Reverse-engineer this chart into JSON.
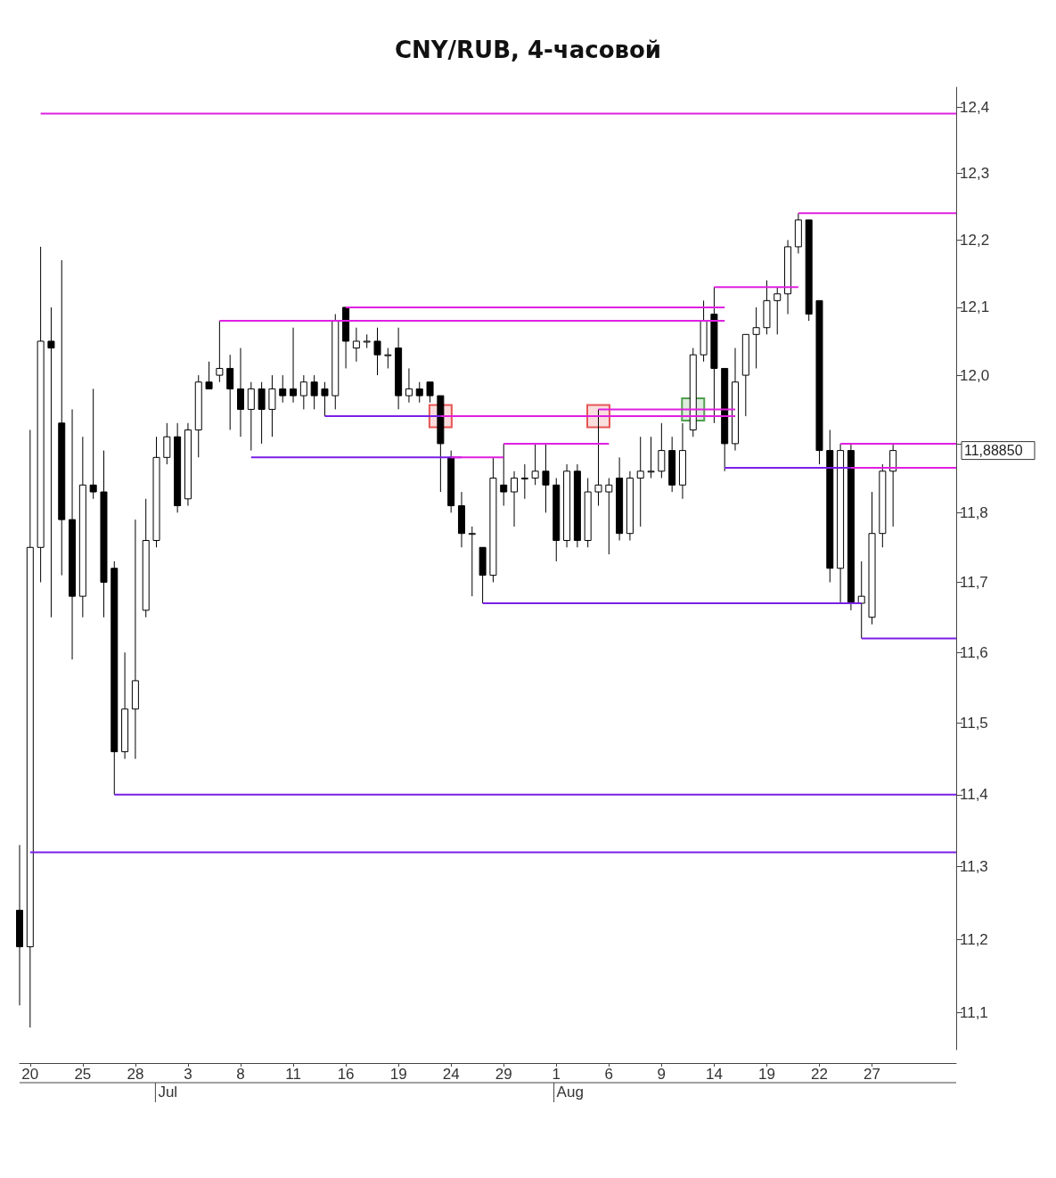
{
  "chart_data": {
    "type": "candlestick",
    "title": "CNY/RUB, 4-часовой",
    "log": "y",
    "ylim": [
      11.05,
      12.43
    ],
    "yticks": [
      {
        "value": 11.1,
        "label": "11,1"
      },
      {
        "value": 11.2,
        "label": "11,2"
      },
      {
        "value": 11.3,
        "label": "11,3"
      },
      {
        "value": 11.4,
        "label": "11,4"
      },
      {
        "value": 11.5,
        "label": "11,5"
      },
      {
        "value": 11.6,
        "label": "11,6"
      },
      {
        "value": 11.7,
        "label": "11,7"
      },
      {
        "value": 11.8,
        "label": "11,8"
      },
      {
        "value": 11.9,
        "label": null
      },
      {
        "value": 12.0,
        "label": "12,0"
      },
      {
        "value": 12.1,
        "label": "12,1"
      },
      {
        "value": 12.2,
        "label": "12,2"
      },
      {
        "value": 12.3,
        "label": "12,3"
      },
      {
        "value": 12.4,
        "label": "12,4"
      }
    ],
    "categories": [
      null,
      "20",
      null,
      null,
      null,
      null,
      "25",
      null,
      null,
      null,
      null,
      "28",
      null,
      null,
      null,
      null,
      "3",
      null,
      null,
      null,
      null,
      "8",
      null,
      null,
      null,
      null,
      "11",
      null,
      null,
      null,
      null,
      "16",
      null,
      null,
      null,
      null,
      "19",
      null,
      null,
      null,
      null,
      "24",
      null,
      null,
      null,
      null,
      "29",
      null,
      null,
      null,
      null,
      "1",
      null,
      null,
      null,
      null,
      "6",
      null,
      null,
      null,
      null,
      "9",
      null,
      null,
      null,
      null,
      "14",
      null,
      null,
      null,
      null,
      "19",
      null,
      null,
      null,
      null,
      "22",
      null,
      null,
      null,
      null,
      "27",
      null,
      null,
      null,
      null,
      null,
      null,
      null,
      null
    ],
    "ohlc": [
      [
        11.24,
        11.33,
        11.11,
        11.19
      ],
      [
        11.19,
        11.92,
        11.08,
        11.75
      ],
      [
        11.75,
        12.19,
        11.7,
        12.05
      ],
      [
        12.05,
        12.1,
        11.65,
        12.04
      ],
      [
        11.93,
        12.17,
        11.71,
        11.79
      ],
      [
        11.79,
        11.95,
        11.59,
        11.68
      ],
      [
        11.68,
        11.91,
        11.65,
        11.84
      ],
      [
        11.84,
        11.98,
        11.82,
        11.83
      ],
      [
        11.83,
        11.89,
        11.65,
        11.7
      ],
      [
        11.72,
        11.73,
        11.4,
        11.46
      ],
      [
        11.46,
        11.6,
        11.45,
        11.52
      ],
      [
        11.52,
        11.79,
        11.45,
        11.56
      ],
      [
        11.66,
        11.82,
        11.65,
        11.76
      ],
      [
        11.76,
        11.91,
        11.75,
        11.88
      ],
      [
        11.88,
        11.93,
        11.87,
        11.91
      ],
      [
        11.91,
        11.93,
        11.8,
        11.81
      ],
      [
        11.82,
        11.93,
        11.81,
        11.92
      ],
      [
        11.92,
        12.0,
        11.88,
        11.99
      ],
      [
        11.99,
        12.02,
        11.98,
        11.98
      ],
      [
        12.0,
        12.08,
        11.99,
        12.01
      ],
      [
        12.01,
        12.03,
        11.92,
        11.98
      ],
      [
        11.98,
        12.04,
        11.91,
        11.95
      ],
      [
        11.95,
        11.99,
        11.89,
        11.98
      ],
      [
        11.98,
        11.99,
        11.9,
        11.95
      ],
      [
        11.95,
        12.0,
        11.91,
        11.98
      ],
      [
        11.98,
        12.0,
        11.96,
        11.97
      ],
      [
        11.98,
        12.07,
        11.96,
        11.97
      ],
      [
        11.97,
        12.0,
        11.95,
        11.99
      ],
      [
        11.99,
        12.0,
        11.95,
        11.97
      ],
      [
        11.98,
        11.99,
        11.94,
        11.97
      ],
      [
        11.97,
        12.09,
        11.95,
        12.08
      ],
      [
        12.1,
        12.1,
        12.01,
        12.05
      ],
      [
        12.04,
        12.07,
        12.02,
        12.05
      ],
      [
        12.05,
        12.06,
        12.04,
        12.05
      ],
      [
        12.05,
        12.07,
        12.0,
        12.03
      ],
      [
        12.03,
        12.04,
        12.01,
        12.03
      ],
      [
        12.04,
        12.07,
        11.95,
        11.97
      ],
      [
        11.97,
        12.01,
        11.96,
        11.98
      ],
      [
        11.98,
        11.99,
        11.96,
        11.97
      ],
      [
        11.99,
        11.99,
        11.96,
        11.97
      ],
      [
        11.97,
        11.97,
        11.83,
        11.9
      ],
      [
        11.88,
        11.89,
        11.8,
        11.81
      ],
      [
        11.81,
        11.83,
        11.75,
        11.77
      ],
      [
        11.77,
        11.78,
        11.68,
        11.77
      ],
      [
        11.75,
        11.75,
        11.67,
        11.71
      ],
      [
        11.71,
        11.88,
        11.7,
        11.85
      ],
      [
        11.84,
        11.9,
        11.81,
        11.83
      ],
      [
        11.83,
        11.86,
        11.78,
        11.85
      ],
      [
        11.85,
        11.87,
        11.82,
        11.85
      ],
      [
        11.85,
        11.9,
        11.84,
        11.86
      ],
      [
        11.86,
        11.9,
        11.8,
        11.84
      ],
      [
        11.84,
        11.85,
        11.73,
        11.76
      ],
      [
        11.76,
        11.87,
        11.75,
        11.86
      ],
      [
        11.86,
        11.87,
        11.75,
        11.76
      ],
      [
        11.76,
        11.85,
        11.75,
        11.83
      ],
      [
        11.83,
        11.95,
        11.81,
        11.84
      ],
      [
        11.83,
        11.85,
        11.74,
        11.84
      ],
      [
        11.85,
        11.88,
        11.76,
        11.77
      ],
      [
        11.77,
        11.86,
        11.76,
        11.85
      ],
      [
        11.85,
        11.91,
        11.78,
        11.86
      ],
      [
        11.86,
        11.91,
        11.85,
        11.86
      ],
      [
        11.86,
        11.93,
        11.85,
        11.89
      ],
      [
        11.89,
        11.91,
        11.83,
        11.84
      ],
      [
        11.84,
        11.93,
        11.82,
        11.89
      ],
      [
        11.92,
        12.04,
        11.91,
        12.03
      ],
      [
        12.03,
        12.11,
        12.02,
        12.08
      ],
      [
        12.09,
        12.13,
        11.93,
        12.01
      ],
      [
        12.01,
        12.01,
        11.86,
        11.9
      ],
      [
        11.9,
        12.04,
        11.89,
        11.99
      ],
      [
        12.0,
        12.06,
        11.94,
        12.06
      ],
      [
        12.06,
        12.1,
        12.01,
        12.07
      ],
      [
        12.07,
        12.14,
        12.06,
        12.11
      ],
      [
        12.11,
        12.13,
        12.06,
        12.12
      ],
      [
        12.12,
        12.2,
        12.09,
        12.19
      ],
      [
        12.19,
        12.24,
        12.18,
        12.23
      ],
      [
        12.23,
        12.23,
        12.08,
        12.09
      ],
      [
        12.11,
        12.11,
        11.87,
        11.89
      ],
      [
        11.89,
        11.92,
        11.7,
        11.72
      ],
      [
        11.72,
        11.9,
        11.67,
        11.89
      ],
      [
        11.89,
        11.9,
        11.66,
        11.67
      ],
      [
        11.67,
        11.73,
        11.62,
        11.68
      ],
      [
        11.65,
        11.83,
        11.64,
        11.77
      ],
      [
        11.77,
        11.87,
        11.75,
        11.86
      ],
      [
        11.86,
        11.9,
        11.78,
        11.89
      ],
      null,
      null,
      null,
      null,
      null,
      null
    ],
    "series": [
      {
        "type": "line",
        "color": "#7a1fe6",
        "values": [
          null,
          11.32,
          11.32,
          11.32,
          11.32,
          11.32,
          11.32,
          11.32,
          11.32,
          11.32,
          11.32,
          11.32,
          11.32,
          11.32,
          11.32,
          11.32,
          11.32,
          11.32,
          11.32,
          11.32,
          11.32,
          11.32,
          11.32,
          11.32,
          11.32,
          11.32,
          11.32,
          11.32,
          11.32,
          11.32,
          11.32,
          11.32,
          11.32,
          11.32,
          11.32,
          11.32,
          11.32,
          11.32,
          11.32,
          11.32,
          11.32,
          11.32,
          11.32,
          11.32,
          11.32,
          11.32,
          11.32,
          11.32,
          11.32,
          11.32,
          11.32,
          11.32,
          11.32,
          11.32,
          11.32,
          11.32,
          11.32,
          11.32,
          11.32,
          11.32,
          11.32,
          11.32,
          11.32,
          11.32,
          11.32,
          11.32,
          11.32,
          11.32,
          11.32,
          11.32,
          11.32,
          11.32,
          11.32,
          11.32,
          11.32,
          11.32,
          11.32,
          11.32,
          11.32,
          11.32,
          11.32,
          11.32,
          11.32,
          11.32,
          11.32,
          11.32,
          11.32,
          11.32,
          11.32,
          11.32
        ]
      },
      {
        "type": "line",
        "color": "#7a1fe6",
        "values": [
          null,
          null,
          null,
          null,
          null,
          null,
          null,
          null,
          null,
          11.4,
          11.4,
          11.4,
          11.4,
          11.4,
          11.4,
          11.4,
          11.4,
          11.4,
          11.4,
          11.4,
          11.4,
          11.4,
          11.4,
          11.4,
          11.4,
          11.4,
          11.4,
          11.4,
          11.4,
          11.4,
          11.4,
          11.4,
          11.4,
          11.4,
          11.4,
          11.4,
          11.4,
          11.4,
          11.4,
          11.4,
          11.4,
          11.4,
          11.4,
          11.4,
          11.4,
          11.4,
          11.4,
          11.4,
          11.4,
          11.4,
          11.4,
          11.4,
          11.4,
          11.4,
          11.4,
          11.4,
          11.4,
          11.4,
          11.4,
          11.4,
          11.4,
          11.4,
          11.4,
          11.4,
          11.4,
          11.4,
          11.4,
          11.4,
          11.4,
          11.4,
          11.4,
          11.4,
          11.4,
          11.4,
          11.4,
          11.4,
          11.4,
          11.4,
          11.4,
          11.4,
          11.4,
          11.4,
          11.4,
          11.4,
          11.4,
          11.4,
          11.4,
          11.4,
          11.4,
          11.4
        ]
      },
      {
        "type": "line",
        "color": "#7a1fe6",
        "values": [
          null,
          null,
          null,
          null,
          null,
          null,
          null,
          null,
          null,
          null,
          null,
          null,
          null,
          null,
          null,
          null,
          null,
          null,
          null,
          null,
          null,
          null,
          null,
          null,
          null,
          null,
          null,
          null,
          null,
          null,
          null,
          null,
          null,
          null,
          null,
          null,
          null,
          null,
          null,
          null,
          null,
          null,
          null,
          null,
          11.67,
          11.67,
          11.67,
          11.67,
          11.67,
          11.67,
          11.67,
          11.67,
          11.67,
          11.67,
          11.67,
          11.67,
          11.67,
          11.67,
          11.67,
          11.67,
          11.67,
          11.67,
          11.67,
          11.67,
          11.67,
          11.67,
          11.67,
          11.67,
          11.67,
          11.67,
          11.67,
          11.67,
          11.67,
          11.67,
          11.67,
          11.67,
          11.67,
          11.67,
          11.67,
          11.67,
          11.67,
          null,
          null,
          null,
          null,
          null,
          null,
          null,
          null,
          null
        ]
      },
      {
        "type": "line",
        "color": "#7a1fe6",
        "values": [
          null,
          null,
          null,
          null,
          null,
          null,
          null,
          null,
          null,
          null,
          null,
          null,
          null,
          null,
          null,
          null,
          null,
          null,
          null,
          null,
          null,
          null,
          null,
          null,
          null,
          null,
          null,
          null,
          null,
          null,
          null,
          null,
          null,
          null,
          null,
          null,
          null,
          null,
          null,
          null,
          null,
          null,
          null,
          null,
          null,
          null,
          null,
          null,
          null,
          null,
          null,
          null,
          null,
          null,
          null,
          null,
          null,
          null,
          null,
          null,
          null,
          null,
          null,
          null,
          null,
          null,
          null,
          null,
          null,
          null,
          null,
          null,
          null,
          null,
          null,
          null,
          null,
          null,
          null,
          null,
          11.62,
          11.62,
          11.62,
          11.62,
          11.62,
          11.62,
          11.62,
          11.62,
          11.62,
          11.62
        ]
      },
      {
        "type": "line",
        "color": "#7a1fe6",
        "values": [
          null,
          null,
          null,
          null,
          null,
          null,
          null,
          null,
          null,
          null,
          null,
          null,
          null,
          null,
          null,
          null,
          null,
          null,
          null,
          null,
          null,
          null,
          11.88,
          11.88,
          11.88,
          11.88,
          11.88,
          11.88,
          11.88,
          11.88,
          11.88,
          11.88,
          11.88,
          11.88,
          11.88,
          11.88,
          11.88,
          11.88,
          11.88,
          11.88,
          11.88,
          11.88,
          11.88,
          null,
          null,
          null,
          null,
          null,
          null,
          null,
          null,
          null,
          null,
          null,
          null,
          null,
          null,
          null,
          null,
          null,
          null,
          null,
          null,
          null,
          null,
          null,
          null,
          null,
          null,
          null,
          null,
          null,
          null,
          null,
          null,
          null,
          null,
          null,
          null,
          null,
          null,
          null,
          null,
          null,
          null,
          null,
          null,
          null,
          null,
          null
        ]
      },
      {
        "type": "line",
        "color": "#7a1fe6",
        "values": [
          null,
          null,
          null,
          null,
          null,
          null,
          null,
          null,
          null,
          null,
          null,
          null,
          null,
          null,
          null,
          null,
          null,
          null,
          null,
          null,
          null,
          null,
          null,
          null,
          null,
          null,
          null,
          null,
          null,
          11.94,
          11.94,
          11.94,
          11.94,
          11.94,
          11.94,
          11.94,
          11.94,
          11.94,
          11.94,
          11.94,
          11.94,
          null,
          null,
          null,
          null,
          null,
          null,
          null,
          null,
          null,
          null,
          null,
          null,
          null,
          null,
          null,
          null,
          null,
          null,
          null,
          null,
          null,
          null,
          null,
          null,
          null,
          null,
          null,
          null,
          null,
          null,
          null,
          null,
          null,
          null,
          null,
          null,
          null,
          null,
          null,
          null,
          null,
          null,
          null,
          null,
          null,
          null,
          null,
          null,
          null
        ]
      },
      {
        "type": "line",
        "color": "#7a1fe6",
        "values": [
          null,
          null,
          null,
          null,
          null,
          null,
          null,
          null,
          null,
          null,
          null,
          null,
          null,
          null,
          null,
          null,
          null,
          null,
          null,
          null,
          null,
          null,
          null,
          null,
          null,
          null,
          null,
          null,
          null,
          null,
          null,
          null,
          null,
          null,
          null,
          null,
          null,
          null,
          null,
          null,
          null,
          null,
          null,
          null,
          null,
          null,
          null,
          null,
          null,
          null,
          null,
          null,
          null,
          null,
          null,
          null,
          null,
          null,
          null,
          null,
          null,
          null,
          null,
          null,
          null,
          null,
          null,
          11.865,
          11.865,
          11.865,
          11.865,
          11.865,
          11.865,
          11.865,
          11.865,
          11.865,
          11.865,
          11.865,
          11.865,
          11.865,
          null,
          null,
          null,
          null,
          null,
          null,
          null,
          null,
          null,
          null
        ]
      },
      {
        "type": "line",
        "color": "#e020e0",
        "values": [
          null,
          null,
          12.39,
          12.39,
          12.39,
          12.39,
          12.39,
          12.39,
          12.39,
          12.39,
          12.39,
          12.39,
          12.39,
          12.39,
          12.39,
          12.39,
          12.39,
          12.39,
          12.39,
          12.39,
          12.39,
          12.39,
          12.39,
          12.39,
          12.39,
          12.39,
          12.39,
          12.39,
          12.39,
          12.39,
          12.39,
          12.39,
          12.39,
          12.39,
          12.39,
          12.39,
          12.39,
          12.39,
          12.39,
          12.39,
          12.39,
          12.39,
          12.39,
          12.39,
          12.39,
          12.39,
          12.39,
          12.39,
          12.39,
          12.39,
          12.39,
          12.39,
          12.39,
          12.39,
          12.39,
          12.39,
          12.39,
          12.39,
          12.39,
          12.39,
          12.39,
          12.39,
          12.39,
          12.39,
          12.39,
          12.39,
          12.39,
          12.39,
          12.39,
          12.39,
          12.39,
          12.39,
          12.39,
          12.39,
          12.39,
          12.39,
          12.39,
          12.39,
          12.39,
          12.39,
          12.39,
          12.39,
          12.39,
          12.39,
          12.39,
          12.39,
          12.39,
          12.39,
          12.39,
          12.39
        ]
      },
      {
        "type": "line",
        "color": "#e020e0",
        "values": [
          null,
          null,
          null,
          null,
          null,
          null,
          null,
          null,
          null,
          null,
          null,
          null,
          null,
          null,
          null,
          null,
          null,
          null,
          null,
          null,
          null,
          null,
          null,
          null,
          null,
          null,
          null,
          null,
          null,
          null,
          null,
          null,
          null,
          null,
          null,
          null,
          null,
          null,
          null,
          null,
          null,
          null,
          null,
          null,
          null,
          null,
          null,
          null,
          null,
          null,
          null,
          null,
          null,
          null,
          null,
          null,
          null,
          null,
          null,
          null,
          null,
          null,
          null,
          null,
          null,
          null,
          null,
          null,
          null,
          null,
          null,
          null,
          null,
          null,
          12.24,
          12.24,
          12.24,
          12.24,
          12.24,
          12.24,
          12.24,
          12.24,
          12.24,
          12.24,
          12.24,
          12.24,
          12.24,
          12.24,
          12.24,
          12.24
        ]
      },
      {
        "type": "line",
        "color": "#e020e0",
        "values": [
          null,
          null,
          null,
          null,
          null,
          null,
          null,
          null,
          null,
          null,
          null,
          null,
          null,
          null,
          null,
          null,
          null,
          null,
          null,
          null,
          null,
          null,
          null,
          null,
          null,
          null,
          null,
          null,
          null,
          null,
          null,
          null,
          null,
          null,
          null,
          null,
          null,
          null,
          null,
          null,
          null,
          null,
          null,
          null,
          null,
          null,
          null,
          null,
          null,
          null,
          null,
          null,
          null,
          null,
          null,
          null,
          null,
          null,
          null,
          null,
          null,
          null,
          null,
          null,
          null,
          null,
          12.13,
          12.13,
          12.13,
          12.13,
          12.13,
          12.13,
          12.13,
          12.13,
          12.13,
          null,
          null,
          null,
          null,
          null,
          null,
          null,
          null,
          null,
          null,
          null,
          null,
          null,
          null,
          null
        ]
      },
      {
        "type": "line",
        "color": "#e020e0",
        "values": [
          null,
          null,
          null,
          null,
          null,
          null,
          null,
          null,
          null,
          null,
          null,
          null,
          null,
          null,
          null,
          null,
          null,
          null,
          null,
          null,
          null,
          null,
          null,
          null,
          null,
          null,
          null,
          null,
          null,
          null,
          null,
          12.1,
          12.1,
          12.1,
          12.1,
          12.1,
          12.1,
          12.1,
          12.1,
          12.1,
          12.1,
          12.1,
          12.1,
          12.1,
          12.1,
          12.1,
          12.1,
          12.1,
          12.1,
          12.1,
          12.1,
          12.1,
          12.1,
          12.1,
          12.1,
          12.1,
          12.1,
          12.1,
          12.1,
          12.1,
          12.1,
          12.1,
          12.1,
          12.1,
          12.1,
          12.1,
          12.1,
          12.1,
          null,
          null,
          null,
          null,
          null,
          null,
          null,
          null,
          null,
          null,
          null,
          null,
          null,
          null,
          null,
          null,
          null,
          null,
          null,
          null,
          null,
          null
        ]
      },
      {
        "type": "line",
        "color": "#e020e0",
        "values": [
          null,
          null,
          null,
          null,
          null,
          null,
          null,
          null,
          null,
          null,
          null,
          null,
          null,
          null,
          null,
          null,
          null,
          null,
          null,
          12.08,
          12.08,
          12.08,
          12.08,
          12.08,
          12.08,
          12.08,
          12.08,
          12.08,
          12.08,
          12.08,
          12.08,
          12.08,
          12.08,
          12.08,
          12.08,
          12.08,
          12.08,
          12.08,
          12.08,
          12.08,
          12.08,
          12.08,
          12.08,
          12.08,
          12.08,
          12.08,
          12.08,
          12.08,
          12.08,
          12.08,
          12.08,
          12.08,
          12.08,
          12.08,
          12.08,
          12.08,
          12.08,
          12.08,
          12.08,
          12.08,
          12.08,
          12.08,
          12.08,
          12.08,
          12.08,
          12.08,
          12.08,
          12.08,
          null,
          null,
          null,
          null,
          null,
          null,
          null,
          null,
          null,
          null,
          null,
          null,
          null,
          null,
          null,
          null,
          null,
          null,
          null,
          null,
          null,
          null
        ]
      },
      {
        "type": "line",
        "color": "#e020e0",
        "values": [
          null,
          null,
          null,
          null,
          null,
          null,
          null,
          null,
          null,
          null,
          null,
          null,
          null,
          null,
          null,
          null,
          null,
          null,
          null,
          null,
          null,
          null,
          null,
          null,
          null,
          null,
          null,
          null,
          null,
          null,
          null,
          null,
          null,
          null,
          null,
          null,
          null,
          null,
          null,
          null,
          null,
          null,
          null,
          null,
          null,
          null,
          null,
          null,
          null,
          null,
          null,
          null,
          null,
          null,
          null,
          11.95,
          11.95,
          11.95,
          11.95,
          11.95,
          11.95,
          11.95,
          11.95,
          11.95,
          11.95,
          11.95,
          11.95,
          11.95,
          11.95,
          null,
          null,
          null,
          null,
          null,
          null,
          null,
          null,
          null,
          null,
          null,
          null,
          null,
          null,
          null,
          null,
          null,
          null,
          null,
          null,
          null
        ]
      },
      {
        "type": "line",
        "color": "#e020e0",
        "values": [
          null,
          null,
          null,
          null,
          null,
          null,
          null,
          null,
          null,
          null,
          null,
          null,
          null,
          null,
          null,
          null,
          null,
          null,
          null,
          null,
          null,
          null,
          null,
          null,
          null,
          null,
          null,
          null,
          null,
          null,
          null,
          null,
          null,
          null,
          null,
          null,
          null,
          null,
          null,
          null,
          11.94,
          11.94,
          11.94,
          11.94,
          11.94,
          11.94,
          11.94,
          11.94,
          11.94,
          11.94,
          11.94,
          11.94,
          11.94,
          11.94,
          11.94,
          11.94,
          11.94,
          11.94,
          11.94,
          11.94,
          11.94,
          11.94,
          11.94,
          11.94,
          11.94,
          11.94,
          11.94,
          11.94,
          11.94,
          null,
          null,
          null,
          null,
          null,
          null,
          null,
          null,
          null,
          null,
          null,
          null,
          null,
          null,
          null,
          null,
          null,
          null,
          null,
          null,
          null
        ]
      },
      {
        "type": "line",
        "color": "#e020e0",
        "values": [
          null,
          null,
          null,
          null,
          null,
          null,
          null,
          null,
          null,
          null,
          null,
          null,
          null,
          null,
          null,
          null,
          null,
          null,
          null,
          null,
          null,
          null,
          null,
          null,
          null,
          null,
          null,
          null,
          null,
          null,
          null,
          null,
          null,
          null,
          null,
          null,
          null,
          null,
          null,
          null,
          null,
          null,
          null,
          null,
          null,
          null,
          11.9,
          11.9,
          11.9,
          11.9,
          11.9,
          11.9,
          11.9,
          11.9,
          11.9,
          11.9,
          11.9,
          null,
          null,
          null,
          null,
          null,
          null,
          null,
          null,
          null,
          null,
          null,
          null,
          null,
          null,
          null,
          null,
          null,
          null,
          null,
          null,
          null,
          null,
          null,
          null,
          null,
          null,
          null,
          null,
          null,
          null,
          null,
          null,
          null
        ]
      },
      {
        "type": "line",
        "color": "#e020e0",
        "values": [
          null,
          null,
          null,
          null,
          null,
          null,
          null,
          null,
          null,
          null,
          null,
          null,
          null,
          null,
          null,
          null,
          null,
          null,
          null,
          null,
          null,
          null,
          null,
          null,
          null,
          null,
          null,
          null,
          null,
          null,
          null,
          null,
          null,
          null,
          null,
          null,
          null,
          null,
          null,
          null,
          null,
          11.88,
          11.88,
          11.88,
          11.88,
          11.88,
          11.88,
          null,
          null,
          null,
          null,
          null,
          null,
          null,
          null,
          null,
          null,
          null,
          null,
          null,
          null,
          null,
          null,
          null,
          null,
          null,
          null,
          null,
          null,
          null,
          null,
          null,
          null,
          null,
          null,
          null,
          null,
          null,
          null,
          null,
          null,
          null,
          null,
          null,
          null,
          null,
          null,
          null,
          null,
          null
        ]
      },
      {
        "type": "line",
        "color": "#e020e0",
        "values": [
          null,
          null,
          null,
          null,
          null,
          null,
          null,
          null,
          null,
          null,
          null,
          null,
          null,
          null,
          null,
          null,
          null,
          null,
          null,
          null,
          null,
          null,
          null,
          null,
          null,
          null,
          null,
          null,
          null,
          null,
          null,
          null,
          null,
          null,
          null,
          null,
          null,
          null,
          null,
          null,
          null,
          null,
          null,
          null,
          null,
          null,
          null,
          null,
          null,
          null,
          null,
          null,
          null,
          null,
          null,
          null,
          null,
          null,
          null,
          null,
          null,
          null,
          null,
          null,
          null,
          null,
          null,
          null,
          null,
          null,
          null,
          null,
          null,
          null,
          null,
          null,
          null,
          null,
          11.9,
          11.9,
          11.9,
          11.9,
          11.9,
          11.9,
          11.9,
          11.9,
          11.9,
          11.9,
          11.9,
          11.9
        ]
      },
      {
        "type": "line",
        "color": "#e020e0",
        "values": [
          null,
          null,
          null,
          null,
          null,
          null,
          null,
          null,
          null,
          null,
          null,
          null,
          null,
          null,
          null,
          null,
          null,
          null,
          null,
          null,
          null,
          null,
          null,
          null,
          null,
          null,
          null,
          null,
          null,
          null,
          null,
          null,
          null,
          null,
          null,
          null,
          null,
          null,
          null,
          null,
          null,
          null,
          null,
          null,
          null,
          null,
          null,
          null,
          null,
          null,
          null,
          null,
          null,
          null,
          null,
          null,
          null,
          null,
          null,
          null,
          null,
          null,
          null,
          null,
          null,
          null,
          null,
          null,
          null,
          null,
          null,
          null,
          null,
          null,
          null,
          null,
          null,
          null,
          null,
          11.865,
          11.865,
          11.865,
          11.865,
          11.865,
          11.865,
          11.865,
          11.865,
          11.865,
          11.865,
          11.865
        ]
      },
      {
        "type": "scatter",
        "marker": "square",
        "color": "#e03030",
        "values": [
          null,
          null,
          null,
          null,
          null,
          null,
          null,
          null,
          null,
          null,
          null,
          null,
          null,
          null,
          null,
          null,
          null,
          null,
          null,
          null,
          null,
          null,
          null,
          null,
          null,
          null,
          null,
          null,
          null,
          null,
          null,
          null,
          null,
          null,
          null,
          null,
          null,
          null,
          null,
          null,
          11.94,
          null,
          null,
          null,
          null,
          null,
          null,
          null,
          null,
          null,
          null,
          null,
          null,
          null,
          null,
          11.94,
          null,
          null,
          null,
          null,
          null,
          null,
          null,
          null,
          null,
          null,
          null,
          null,
          null,
          null,
          null,
          null,
          null,
          null,
          null,
          null,
          null,
          null,
          null,
          null,
          null,
          null,
          null,
          null,
          null,
          null,
          null,
          null,
          null,
          null
        ]
      },
      {
        "type": "scatter",
        "marker": "square",
        "color": "#2a8a2a",
        "values": [
          null,
          null,
          null,
          null,
          null,
          null,
          null,
          null,
          null,
          null,
          null,
          null,
          null,
          null,
          null,
          null,
          null,
          null,
          null,
          null,
          null,
          null,
          null,
          null,
          null,
          null,
          null,
          null,
          null,
          null,
          null,
          null,
          null,
          null,
          null,
          null,
          null,
          null,
          null,
          null,
          null,
          null,
          null,
          null,
          null,
          null,
          null,
          null,
          null,
          null,
          null,
          null,
          null,
          null,
          null,
          null,
          null,
          null,
          null,
          null,
          null,
          null,
          null,
          null,
          11.95,
          null,
          null,
          null,
          null,
          null,
          null,
          null,
          null,
          null,
          null,
          null,
          null,
          null,
          null,
          null,
          null,
          null,
          null,
          null,
          null,
          null,
          null,
          null,
          null,
          null
        ]
      }
    ],
    "annotations": [
      "11,88850",
      "Jul",
      "Aug"
    ]
  }
}
